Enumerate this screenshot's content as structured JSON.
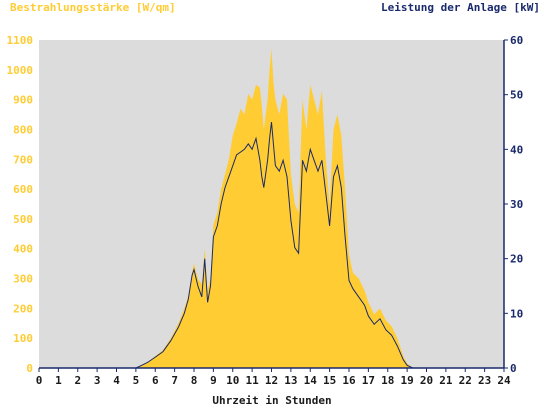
{
  "labels": {
    "left_axis": "Bestrahlungsstärke [W/qm]",
    "right_axis": "Leistung der Anlage [kW]",
    "x_axis": "Uhrzeit in Stunden"
  },
  "colors": {
    "plot_background": "#dcdcdc",
    "irradiance_fill": "#ffcc33",
    "power_line": "#1a2a6c",
    "left_tick_text": "#ffcc33",
    "right_tick_text": "#1a2a6c",
    "axis_line": "#1a2a6c"
  },
  "chart_data": {
    "type": "area",
    "x_ticks": [
      0,
      1,
      2,
      3,
      4,
      5,
      6,
      7,
      8,
      9,
      10,
      11,
      12,
      13,
      14,
      15,
      16,
      17,
      18,
      19,
      20,
      21,
      22,
      23,
      24
    ],
    "xlim": [
      0,
      24
    ],
    "ylim_left": [
      0,
      1100
    ],
    "ylim_right": [
      0,
      60
    ],
    "y_ticks_left": [
      0,
      100,
      200,
      300,
      400,
      500,
      600,
      700,
      800,
      900,
      1000,
      1100
    ],
    "y_ticks_right": [
      0,
      10,
      20,
      30,
      40,
      50,
      60
    ],
    "grid": false,
    "series": [
      {
        "name": "Bestrahlungsstärke [W/qm]",
        "axis": "left",
        "style": "area",
        "x": [
          0,
          5.0,
          5.3,
          5.6,
          6.0,
          6.4,
          6.8,
          7.2,
          7.5,
          7.7,
          7.9,
          8.0,
          8.2,
          8.4,
          8.55,
          8.7,
          8.85,
          9.0,
          9.2,
          9.4,
          9.6,
          9.8,
          10.0,
          10.2,
          10.4,
          10.6,
          10.8,
          11.0,
          11.2,
          11.4,
          11.5,
          11.6,
          11.8,
          11.9,
          12.0,
          12.1,
          12.2,
          12.4,
          12.6,
          12.8,
          13.0,
          13.2,
          13.4,
          13.6,
          13.8,
          14.0,
          14.2,
          14.4,
          14.6,
          14.8,
          15.0,
          15.2,
          15.4,
          15.6,
          15.8,
          16.0,
          16.2,
          16.5,
          16.8,
          17.0,
          17.3,
          17.6,
          17.9,
          18.2,
          18.5,
          18.8,
          19.0,
          19.3,
          24
        ],
        "values": [
          0,
          0,
          10,
          20,
          40,
          60,
          100,
          150,
          200,
          240,
          320,
          350,
          300,
          280,
          400,
          260,
          300,
          480,
          520,
          600,
          650,
          700,
          780,
          820,
          870,
          850,
          920,
          900,
          950,
          940,
          880,
          800,
          900,
          1000,
          1070,
          960,
          900,
          850,
          920,
          900,
          650,
          550,
          520,
          900,
          800,
          950,
          900,
          850,
          930,
          700,
          550,
          800,
          850,
          780,
          600,
          380,
          320,
          300,
          260,
          220,
          180,
          200,
          160,
          140,
          100,
          40,
          15,
          0,
          0
        ]
      },
      {
        "name": "Leistung der Anlage [kW]",
        "axis": "right",
        "style": "line",
        "x": [
          0,
          5.0,
          5.3,
          5.6,
          6.0,
          6.4,
          6.8,
          7.2,
          7.5,
          7.7,
          7.9,
          8.0,
          8.2,
          8.4,
          8.55,
          8.7,
          8.85,
          9.0,
          9.2,
          9.4,
          9.6,
          9.8,
          10.0,
          10.2,
          10.4,
          10.6,
          10.8,
          11.0,
          11.2,
          11.4,
          11.5,
          11.6,
          11.8,
          11.9,
          12.0,
          12.1,
          12.2,
          12.4,
          12.6,
          12.8,
          13.0,
          13.2,
          13.4,
          13.6,
          13.8,
          14.0,
          14.2,
          14.4,
          14.6,
          14.8,
          15.0,
          15.2,
          15.4,
          15.6,
          15.8,
          16.0,
          16.2,
          16.5,
          16.8,
          17.0,
          17.3,
          17.6,
          17.9,
          18.2,
          18.5,
          18.8,
          19.0,
          19.3,
          24
        ],
        "values": [
          0,
          0,
          0.5,
          1.0,
          2.0,
          3.0,
          5.0,
          7.5,
          10.0,
          12.5,
          17.0,
          18.0,
          15.0,
          13.0,
          20.0,
          12.0,
          15.0,
          24.0,
          26.0,
          30.0,
          33.0,
          35.0,
          37.0,
          39.0,
          39.5,
          40.0,
          41.0,
          40.0,
          42.0,
          38.0,
          35.0,
          33.0,
          38.0,
          42.0,
          45.0,
          41.0,
          37.0,
          36.0,
          38.0,
          35.0,
          27.0,
          22.0,
          21.0,
          38.0,
          36.0,
          40.0,
          38.0,
          36.0,
          38.0,
          32.0,
          26.0,
          35.0,
          37.0,
          33.0,
          24.0,
          16.0,
          14.5,
          13.0,
          11.5,
          9.5,
          8.0,
          9.0,
          7.0,
          6.0,
          4.0,
          1.5,
          0.5,
          0,
          0
        ]
      }
    ]
  }
}
